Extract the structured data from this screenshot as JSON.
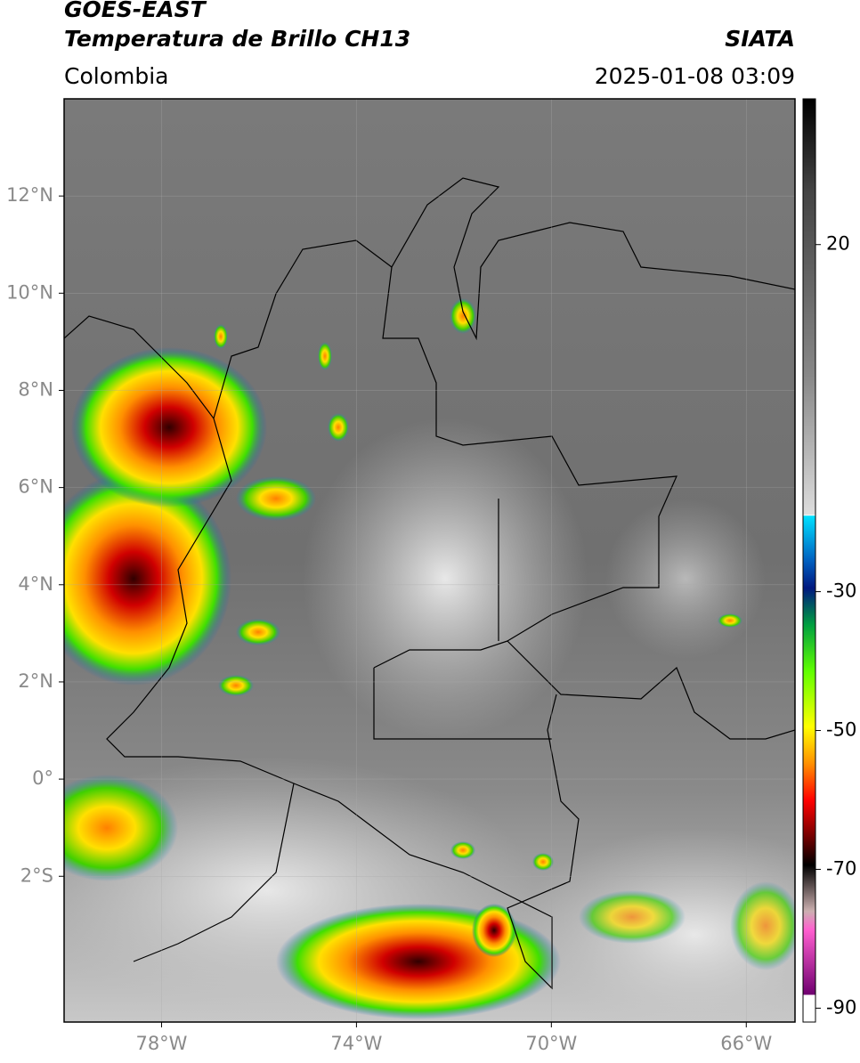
{
  "header": {
    "title": "GOES-EAST",
    "subtitle": "Temperatura de Brillo CH13",
    "source": "SIATA",
    "region": "Colombia",
    "datetime": "2025-01-08 03:09"
  },
  "map": {
    "xlim": [
      -80,
      -65
    ],
    "ylim": [
      -5,
      14
    ],
    "grid": true,
    "xticks": [
      {
        "value": -78,
        "label": "78°W"
      },
      {
        "value": -74,
        "label": "74°W"
      },
      {
        "value": -70,
        "label": "70°W"
      },
      {
        "value": -66,
        "label": "66°W"
      }
    ],
    "yticks": [
      {
        "value": 12,
        "label": "12°N"
      },
      {
        "value": 10,
        "label": "10°N"
      },
      {
        "value": 8,
        "label": "8°N"
      },
      {
        "value": 6,
        "label": "6°N"
      },
      {
        "value": 4,
        "label": "4°N"
      },
      {
        "value": 2,
        "label": "2°N"
      },
      {
        "value": 0,
        "label": "0°"
      },
      {
        "value": -2,
        "label": "2°S"
      }
    ]
  },
  "colorbar": {
    "clim": [
      -92,
      41
    ],
    "ticks": [
      20,
      -30,
      -50,
      -70,
      -90
    ]
  }
}
